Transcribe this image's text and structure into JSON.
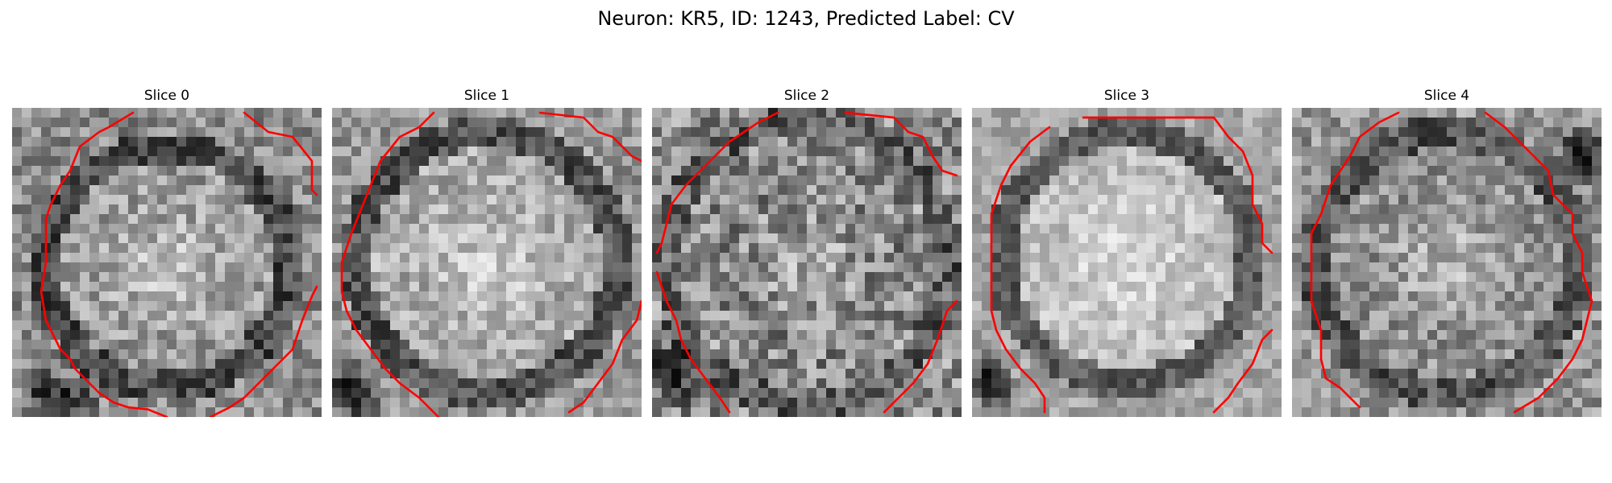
{
  "figure": {
    "title": "Neuron: KR5, ID: 1243, Predicted Label: CV"
  },
  "colors": {
    "background": "#ffffff",
    "contour": "#ff0000",
    "colormap": "gray"
  },
  "panels": [
    {
      "title": "Slice 0"
    },
    {
      "title": "Slice 1"
    },
    {
      "title": "Slice 2"
    },
    {
      "title": "Slice 3"
    },
    {
      "title": "Slice 4"
    }
  ]
}
